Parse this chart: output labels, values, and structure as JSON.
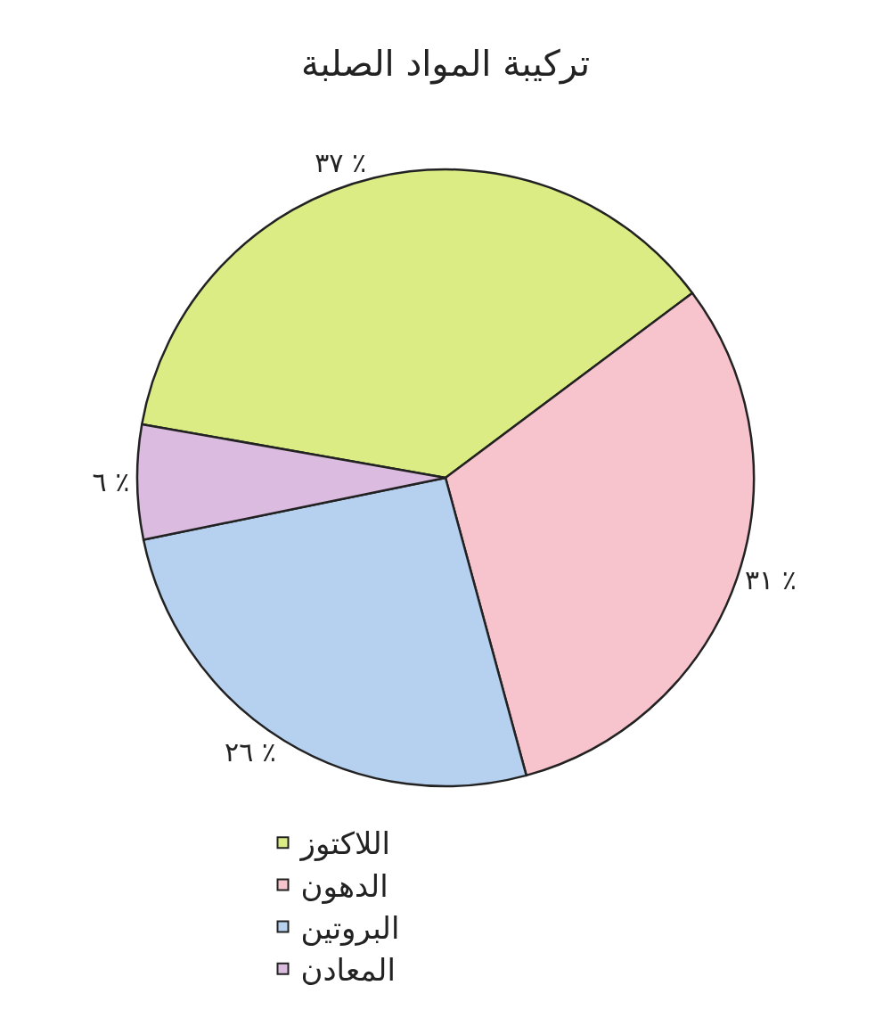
{
  "chart_data": {
    "type": "pie",
    "title": "تركيبة المواد الصلبة",
    "categories": [
      "اللاكتوز",
      "الدهون",
      "البروتين",
      "المعادن"
    ],
    "values": [
      37,
      31,
      26,
      6
    ],
    "value_labels": [
      "٣٧ ٪",
      "٣١ ٪",
      "٢٦ ٪",
      "٦ ٪"
    ],
    "colors": [
      "#dcec84",
      "#f7c4cd",
      "#b6d0ef",
      "#dbbbdf"
    ],
    "legend": "bottom"
  }
}
